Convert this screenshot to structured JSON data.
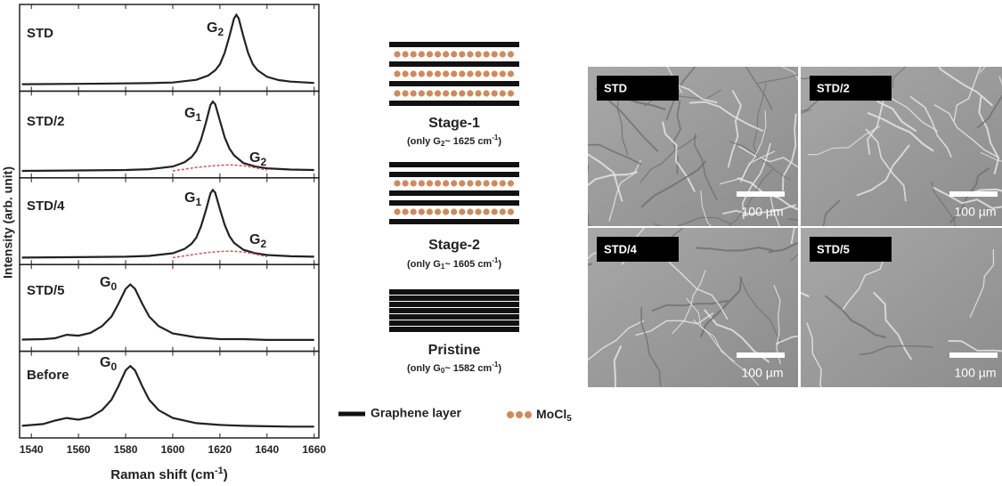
{
  "chart_data": {
    "type": "line",
    "y_label": "Intensity (arb. unit)",
    "x_label": {
      "text": "Raman shift (cm",
      "sup": "-1",
      "close": ")"
    },
    "xlim": [
      1535,
      1662
    ],
    "xticks": [
      1540,
      1560,
      1580,
      1600,
      1620,
      1640,
      1660
    ],
    "panels": [
      {
        "label": "STD",
        "ylim": [
          0,
          1
        ],
        "peaks": [
          {
            "text": "G",
            "sub": "2"
          }
        ],
        "series": [
          {
            "color": "#222222",
            "style": "solid",
            "x": [
              1536,
              1560,
              1590,
              1600,
              1610,
              1615,
              1618,
              1620,
              1622,
              1624,
              1626,
              1627,
              1628,
              1630,
              1632,
              1634,
              1636,
              1640,
              1645,
              1650,
              1660
            ],
            "values": [
              0.08,
              0.084,
              0.092,
              0.1,
              0.13,
              0.18,
              0.24,
              0.31,
              0.44,
              0.63,
              0.84,
              0.88,
              0.84,
              0.63,
              0.44,
              0.31,
              0.24,
              0.165,
              0.127,
              0.11,
              0.094
            ]
          }
        ]
      },
      {
        "label": "STD/2",
        "ylim": [
          0,
          1
        ],
        "peaks": [
          {
            "text": "G",
            "sub": "1"
          },
          {
            "text": "G",
            "sub": "2"
          }
        ],
        "series": [
          {
            "color": "#222222",
            "style": "solid",
            "x": [
              1536,
              1560,
              1580,
              1590,
              1600,
              1605,
              1608,
              1610,
              1612,
              1614,
              1616,
              1617,
              1618,
              1620,
              1622,
              1624,
              1626,
              1630,
              1635,
              1640,
              1650,
              1660
            ],
            "values": [
              0.08,
              0.085,
              0.09,
              0.1,
              0.13,
              0.18,
              0.24,
              0.31,
              0.44,
              0.63,
              0.84,
              0.88,
              0.85,
              0.66,
              0.47,
              0.34,
              0.26,
              0.17,
              0.13,
              0.11,
              0.095,
              0.09
            ]
          },
          {
            "color": "#d9534f",
            "style": "dashed",
            "x": [
              1600,
              1605,
              1610,
              1615,
              1620,
              1625,
              1630,
              1635,
              1640
            ],
            "values": [
              0.08,
              0.1,
              0.12,
              0.135,
              0.145,
              0.15,
              0.14,
              0.115,
              0.09
            ]
          }
        ]
      },
      {
        "label": "STD/4",
        "ylim": [
          0,
          1
        ],
        "peaks": [
          {
            "text": "G",
            "sub": "1"
          },
          {
            "text": "G",
            "sub": "2"
          }
        ],
        "series": [
          {
            "color": "#222222",
            "style": "solid",
            "x": [
              1536,
              1560,
              1580,
              1590,
              1600,
              1605,
              1608,
              1610,
              1612,
              1614,
              1616,
              1617,
              1618,
              1620,
              1622,
              1624,
              1626,
              1630,
              1635,
              1640,
              1650,
              1660
            ],
            "values": [
              0.08,
              0.085,
              0.09,
              0.1,
              0.13,
              0.18,
              0.24,
              0.31,
              0.44,
              0.62,
              0.82,
              0.86,
              0.83,
              0.64,
              0.46,
              0.33,
              0.25,
              0.17,
              0.13,
              0.11,
              0.095,
              0.09
            ]
          },
          {
            "color": "#d9534f",
            "style": "dashed",
            "x": [
              1600,
              1605,
              1610,
              1615,
              1620,
              1625,
              1630,
              1635,
              1640
            ],
            "values": [
              0.08,
              0.1,
              0.12,
              0.14,
              0.15,
              0.155,
              0.145,
              0.12,
              0.09
            ]
          }
        ]
      },
      {
        "label": "STD/5",
        "ylim": [
          0,
          1
        ],
        "peaks": [
          {
            "text": "G",
            "sub": "0"
          }
        ],
        "series": [
          {
            "color": "#222222",
            "style": "solid",
            "x": [
              1536,
              1545,
              1550,
              1555,
              1560,
              1565,
              1570,
              1574,
              1577,
              1580,
              1582,
              1584,
              1587,
              1590,
              1594,
              1600,
              1610,
              1620,
              1630,
              1640,
              1650,
              1660
            ],
            "values": [
              0.135,
              0.14,
              0.15,
              0.19,
              0.18,
              0.21,
              0.29,
              0.4,
              0.55,
              0.72,
              0.77,
              0.72,
              0.55,
              0.4,
              0.29,
              0.205,
              0.16,
              0.14,
              0.14,
              0.13,
              0.13,
              0.13
            ]
          }
        ]
      },
      {
        "label": "Before",
        "ylim": [
          0,
          1
        ],
        "peaks": [
          {
            "text": "G",
            "sub": "0"
          }
        ],
        "series": [
          {
            "color": "#222222",
            "style": "solid",
            "x": [
              1536,
              1545,
              1550,
              1555,
              1560,
              1565,
              1570,
              1574,
              1577,
              1580,
              1582,
              1584,
              1587,
              1590,
              1594,
              1600,
              1610,
              1620,
              1630,
              1640,
              1650,
              1660
            ],
            "values": [
              0.14,
              0.16,
              0.2,
              0.23,
              0.21,
              0.24,
              0.32,
              0.44,
              0.6,
              0.78,
              0.83,
              0.78,
              0.6,
              0.44,
              0.32,
              0.23,
              0.17,
              0.15,
              0.14,
              0.135,
              0.13,
              0.13
            ]
          }
        ]
      }
    ]
  },
  "diagram": {
    "stages": [
      {
        "title": "Stage-1",
        "note": {
          "pre": "(only G",
          "sub": "2",
          "post": "~ 1625 cm",
          "sup": "-1",
          "end": ")"
        }
      },
      {
        "title": "Stage-2",
        "note": {
          "pre": "(only G",
          "sub": "1",
          "post": "~ 1605 cm",
          "sup": "-1",
          "end": ")"
        }
      },
      {
        "title": "Pristine",
        "note": {
          "pre": "(only G",
          "sub": "0",
          "post": "~ 1582 cm",
          "sup": "-1",
          "end": ")"
        }
      }
    ],
    "legend": [
      {
        "label": "Graphene layer"
      },
      {
        "label": "MoCl",
        "sub": "5"
      }
    ]
  },
  "sem": {
    "panels": [
      {
        "label": "STD",
        "scale": "100 µm"
      },
      {
        "label": "STD/2",
        "scale": "100 µm"
      },
      {
        "label": "STD/4",
        "scale": "100 µm"
      },
      {
        "label": "STD/5",
        "scale": "100 µm"
      }
    ]
  }
}
